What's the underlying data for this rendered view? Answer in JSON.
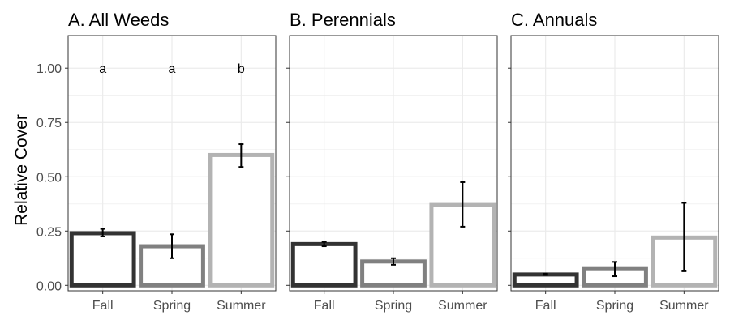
{
  "ylabel": "Relative Cover",
  "chart_data": [
    {
      "type": "bar",
      "title": "A. All Weeds",
      "categories": [
        "Fall",
        "Spring",
        "Summer"
      ],
      "values": [
        0.24,
        0.18,
        0.6
      ],
      "error_low": [
        0.225,
        0.125,
        0.545
      ],
      "error_high": [
        0.26,
        0.235,
        0.65
      ],
      "letters": [
        "a",
        "a",
        "b"
      ],
      "ylim": [
        -0.025,
        1.15
      ],
      "yticks": [
        0.0,
        0.25,
        0.5,
        0.75,
        1.0
      ],
      "yticklabels": [
        "0.00",
        "0.25",
        "0.50",
        "0.75",
        "1.00"
      ],
      "xlabel": "",
      "ylabel": "Relative Cover",
      "grid": true
    },
    {
      "type": "bar",
      "title": "B. Perennials",
      "categories": [
        "Fall",
        "Spring",
        "Summer"
      ],
      "values": [
        0.19,
        0.11,
        0.37
      ],
      "error_low": [
        0.18,
        0.095,
        0.27
      ],
      "error_high": [
        0.2,
        0.125,
        0.475
      ],
      "letters": [],
      "ylim": [
        -0.025,
        1.15
      ],
      "xlabel": "",
      "grid": true
    },
    {
      "type": "bar",
      "title": "C. Annuals",
      "categories": [
        "Fall",
        "Spring",
        "Summer"
      ],
      "values": [
        0.05,
        0.075,
        0.22
      ],
      "error_low": [
        0.048,
        0.042,
        0.065
      ],
      "error_high": [
        0.054,
        0.108,
        0.38
      ],
      "letters": [],
      "ylim": [
        -0.025,
        1.15
      ],
      "xlabel": "",
      "grid": true
    }
  ],
  "colors": {
    "bar_outlines": [
      "#333333",
      "#808080",
      "#b3b3b3"
    ],
    "grid": "#ebebeb",
    "panel_border": "#333333",
    "text": "#000000",
    "tick_text": "#4d4d4d"
  }
}
